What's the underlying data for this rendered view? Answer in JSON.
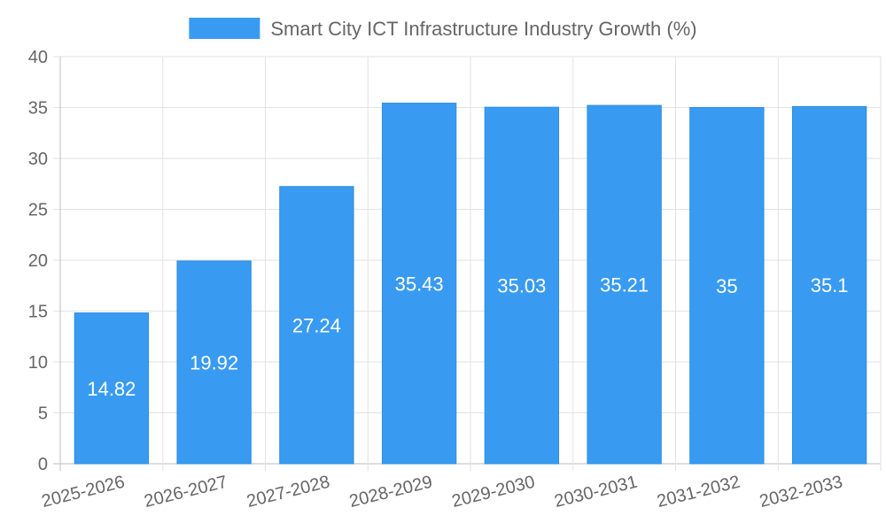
{
  "chart_data": {
    "type": "bar",
    "categories": [
      "2025-2026",
      "2026-2027",
      "2027-2028",
      "2028-2029",
      "2029-2030",
      "2030-2031",
      "2031-2032",
      "2032-2033"
    ],
    "series": [
      {
        "name": "Smart City ICT Infrastructure Industry Growth (%)",
        "values": [
          14.82,
          19.92,
          27.24,
          35.43,
          35.03,
          35.21,
          35,
          35.1
        ],
        "data_labels": [
          "14.82",
          "19.92",
          "27.24",
          "35.43",
          "35.03",
          "35.21",
          "35",
          "35.1"
        ],
        "color": "#389bf1"
      }
    ],
    "ylim": [
      0,
      40
    ],
    "yticks": [
      "0",
      "5",
      "10",
      "15",
      "20",
      "25",
      "30",
      "35",
      "40"
    ],
    "grid": true,
    "legend": "top-center",
    "xlabel": "",
    "ylabel": ""
  }
}
